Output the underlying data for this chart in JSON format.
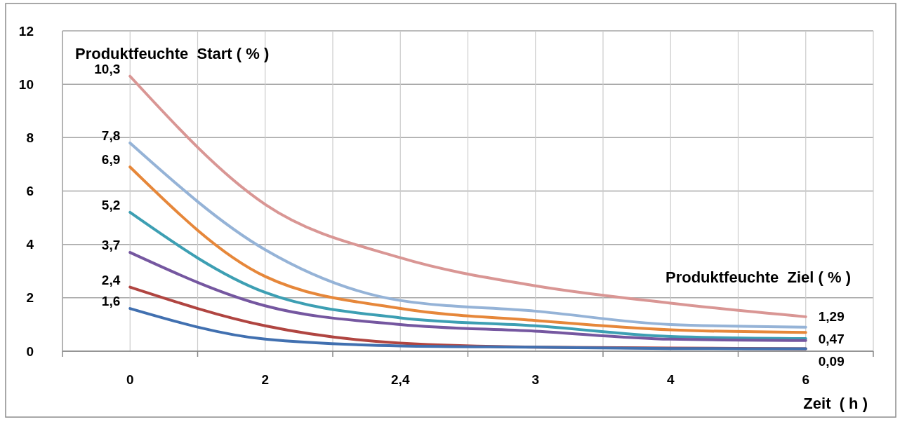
{
  "chart_data": {
    "type": "line",
    "xlabel": "Zeit  ( h )",
    "categories": [
      "0",
      "2",
      "2,4",
      "3",
      "4",
      "6"
    ],
    "ylim": [
      0,
      12
    ],
    "yticks": [
      0,
      2,
      4,
      6,
      8,
      10,
      12
    ],
    "grid": true,
    "marker": "none",
    "line_style": "solid",
    "annotations": [
      "Produktfeuchte  Start ( % )",
      "Produktfeuchte  Ziel ( % )"
    ],
    "series": [
      {
        "color": "#d99694",
        "values": [
          10.3,
          5.5,
          3.5,
          2.45,
          1.8,
          1.29
        ],
        "value_labels": [
          "10,3",
          null,
          null,
          null,
          null,
          "1,29"
        ]
      },
      {
        "color": "#95b3d7",
        "values": [
          7.8,
          3.8,
          1.9,
          1.5,
          1.0,
          0.9
        ],
        "value_labels": [
          "7,8",
          null,
          null,
          null,
          null,
          null
        ]
      },
      {
        "color": "#e6873a",
        "values": [
          6.9,
          2.8,
          1.6,
          1.15,
          0.8,
          0.7
        ],
        "value_labels": [
          "6,9",
          null,
          null,
          null,
          null,
          null
        ]
      },
      {
        "color": "#3d9fb3",
        "values": [
          5.2,
          2.2,
          1.25,
          0.95,
          0.55,
          0.47
        ],
        "value_labels": [
          "5,2",
          null,
          null,
          null,
          null,
          "0,47"
        ]
      },
      {
        "color": "#7557a0",
        "values": [
          3.7,
          1.7,
          1.0,
          0.75,
          0.45,
          0.4
        ],
        "value_labels": [
          "3,7",
          null,
          null,
          null,
          null,
          null
        ]
      },
      {
        "color": "#b04541",
        "values": [
          2.4,
          0.95,
          0.3,
          0.15,
          0.12,
          0.09
        ],
        "value_labels": [
          "2,4",
          null,
          null,
          null,
          null,
          "0,09"
        ]
      },
      {
        "color": "#4170b0",
        "values": [
          1.6,
          0.45,
          0.2,
          0.15,
          0.1,
          0.09
        ],
        "value_labels": [
          "1,6",
          null,
          null,
          null,
          null,
          null
        ]
      }
    ]
  }
}
